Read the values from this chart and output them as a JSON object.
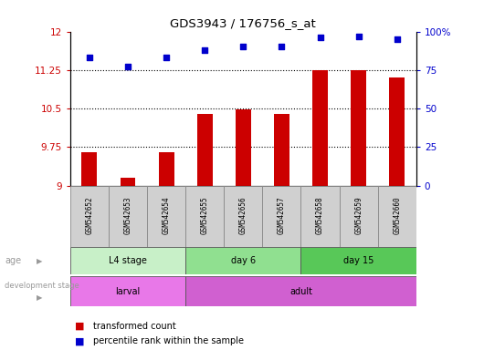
{
  "title": "GDS3943 / 176756_s_at",
  "samples": [
    "GSM542652",
    "GSM542653",
    "GSM542654",
    "GSM542655",
    "GSM542656",
    "GSM542657",
    "GSM542658",
    "GSM542659",
    "GSM542660"
  ],
  "transformed_count": [
    9.65,
    9.15,
    9.65,
    10.4,
    10.48,
    10.4,
    11.25,
    11.25,
    11.1
  ],
  "percentile_rank": [
    83,
    77,
    83,
    88,
    90,
    90,
    96,
    97,
    95
  ],
  "ylim_left": [
    9.0,
    12.0
  ],
  "ylim_right": [
    0,
    100
  ],
  "yticks_left": [
    9.0,
    9.75,
    10.5,
    11.25,
    12.0
  ],
  "yticks_right": [
    0,
    25,
    50,
    75,
    100
  ],
  "ytick_labels_left": [
    "9",
    "9.75",
    "10.5",
    "11.25",
    "12"
  ],
  "ytick_labels_right": [
    "0",
    "25",
    "50",
    "75",
    "100%"
  ],
  "age_groups": [
    {
      "label": "L4 stage",
      "start": 0,
      "end": 3,
      "color": "#c8f0c8"
    },
    {
      "label": "day 6",
      "start": 3,
      "end": 6,
      "color": "#90e090"
    },
    {
      "label": "day 15",
      "start": 6,
      "end": 9,
      "color": "#58c858"
    }
  ],
  "dev_groups": [
    {
      "label": "larval",
      "start": 0,
      "end": 3,
      "color": "#e878e8"
    },
    {
      "label": "adult",
      "start": 3,
      "end": 9,
      "color": "#d060d0"
    }
  ],
  "bar_color": "#cc0000",
  "dot_color": "#0000cc",
  "left_tick_color": "#cc0000",
  "right_tick_color": "#0000cc",
  "sample_box_color": "#d0d0d0",
  "label_color": "#999999",
  "legend_items": [
    {
      "label": "transformed count",
      "color": "#cc0000"
    },
    {
      "label": "percentile rank within the sample",
      "color": "#0000cc"
    }
  ]
}
